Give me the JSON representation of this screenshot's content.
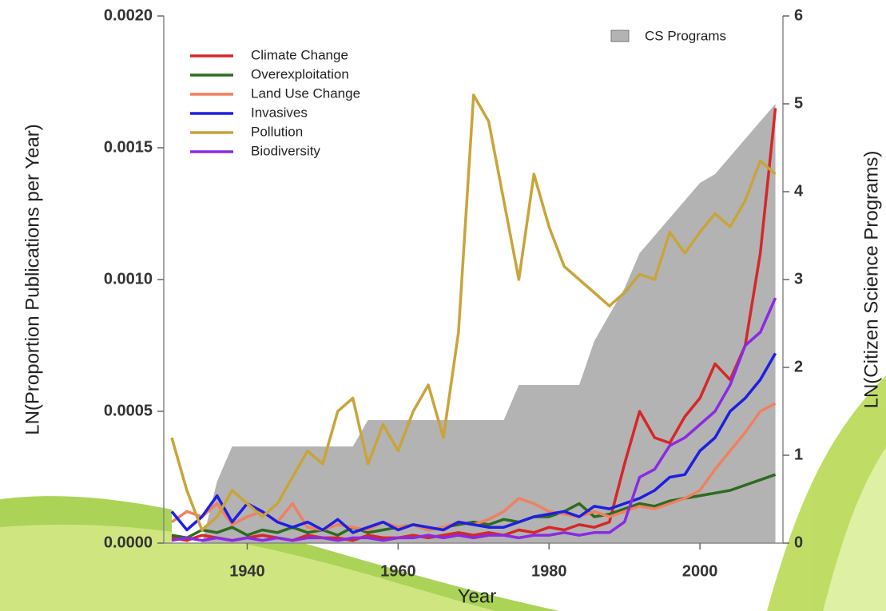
{
  "chart_data": {
    "type": "line",
    "xlabel": "Year",
    "ylabel": "LN(Proportion Publications per Year)",
    "y2label": "LN(Citizen Science Programs)",
    "x": [
      1930,
      1932,
      1934,
      1936,
      1938,
      1940,
      1942,
      1944,
      1946,
      1948,
      1950,
      1952,
      1954,
      1956,
      1958,
      1960,
      1962,
      1964,
      1966,
      1968,
      1970,
      1972,
      1974,
      1976,
      1978,
      1980,
      1982,
      1984,
      1986,
      1988,
      1990,
      1992,
      1994,
      1996,
      1998,
      2000,
      2002,
      2004,
      2006,
      2008,
      2010
    ],
    "xlim": [
      1930,
      2011
    ],
    "xticks": [
      1940,
      1960,
      1980,
      2000
    ],
    "ylim": [
      0,
      0.002
    ],
    "yticks": [
      {
        "value": 0,
        "label": "0.0000"
      },
      {
        "value": 0.0005,
        "label": "0.0005"
      },
      {
        "value": 0.001,
        "label": "0.0010"
      },
      {
        "value": 0.0015,
        "label": "0.0015"
      },
      {
        "value": 0.002,
        "label": "0.0020"
      }
    ],
    "y2lim": [
      0,
      6
    ],
    "y2ticks": [
      0,
      1,
      2,
      3,
      4,
      5,
      6
    ],
    "legend": "upper left",
    "series": [
      {
        "name": "CS Programs",
        "type": "area",
        "axis": "y2",
        "color": "#b3b3b3",
        "values": [
          0,
          0,
          0,
          0.7,
          1.1,
          1.1,
          1.1,
          1.1,
          1.1,
          1.1,
          1.1,
          1.1,
          1.1,
          1.4,
          1.4,
          1.4,
          1.4,
          1.4,
          1.4,
          1.4,
          1.4,
          1.4,
          1.4,
          1.8,
          1.8,
          1.8,
          1.8,
          1.8,
          2.3,
          2.6,
          2.9,
          3.3,
          3.5,
          3.7,
          3.9,
          4.1,
          4.2,
          4.4,
          4.6,
          4.8,
          5.0
        ]
      },
      {
        "name": "Climate Change",
        "color": "#d62728",
        "values": [
          2e-05,
          1e-05,
          3e-05,
          2e-05,
          1e-05,
          2e-05,
          3e-05,
          2e-05,
          1e-05,
          3e-05,
          2e-05,
          2e-05,
          1e-05,
          3e-05,
          2e-05,
          2e-05,
          3e-05,
          2e-05,
          3e-05,
          4e-05,
          3e-05,
          4e-05,
          3e-05,
          5e-05,
          4e-05,
          6e-05,
          5e-05,
          7e-05,
          6e-05,
          8e-05,
          0.0003,
          0.0005,
          0.0004,
          0.00038,
          0.00048,
          0.00055,
          0.00068,
          0.00062,
          0.00075,
          0.0011,
          0.00165
        ]
      },
      {
        "name": "Overexploitation",
        "color": "#2e6b1f",
        "values": [
          3e-05,
          2e-05,
          5e-05,
          4e-05,
          6e-05,
          3e-05,
          5e-05,
          4e-05,
          6e-05,
          4e-05,
          5e-05,
          3e-05,
          6e-05,
          4e-05,
          5e-05,
          6e-05,
          7e-05,
          5e-05,
          6e-05,
          7e-05,
          8e-05,
          7e-05,
          9e-05,
          8e-05,
          0.0001,
          0.0001,
          0.00012,
          0.00015,
          0.0001,
          0.00011,
          0.00013,
          0.00015,
          0.00014,
          0.00016,
          0.00017,
          0.00018,
          0.00019,
          0.0002,
          0.00022,
          0.00024,
          0.00026
        ]
      },
      {
        "name": "Land Use Change",
        "color": "#f08060",
        "values": [
          8e-05,
          0.00012,
          0.0001,
          0.00015,
          7e-05,
          0.0001,
          0.00012,
          8e-05,
          0.00015,
          6e-05,
          5e-05,
          7e-05,
          6e-05,
          5e-05,
          8e-05,
          6e-05,
          7e-05,
          5e-05,
          6e-05,
          8e-05,
          7e-05,
          9e-05,
          0.00012,
          0.00017,
          0.00015,
          0.00012,
          0.00011,
          0.0001,
          0.00012,
          0.0001,
          0.00012,
          0.00014,
          0.00013,
          0.00015,
          0.00017,
          0.0002,
          0.00028,
          0.00035,
          0.00042,
          0.0005,
          0.00053
        ]
      },
      {
        "name": "Invasives",
        "color": "#1f1fe0",
        "values": [
          0.00012,
          5e-05,
          0.0001,
          0.00018,
          8e-05,
          0.00015,
          0.00012,
          8e-05,
          6e-05,
          8e-05,
          5e-05,
          9e-05,
          4e-05,
          6e-05,
          8e-05,
          5e-05,
          7e-05,
          6e-05,
          5e-05,
          8e-05,
          7e-05,
          6e-05,
          6e-05,
          8e-05,
          0.0001,
          0.00011,
          0.00012,
          0.0001,
          0.00014,
          0.00013,
          0.00015,
          0.00017,
          0.0002,
          0.00025,
          0.00026,
          0.00035,
          0.0004,
          0.0005,
          0.00055,
          0.00062,
          0.00072
        ]
      },
      {
        "name": "Pollution",
        "color": "#c9a43a",
        "values": [
          0.0004,
          0.0002,
          5e-05,
          0.0001,
          0.0002,
          0.00015,
          0.0001,
          0.00015,
          0.00025,
          0.00035,
          0.0003,
          0.0005,
          0.00055,
          0.0003,
          0.00045,
          0.00035,
          0.0005,
          0.0006,
          0.0004,
          0.0008,
          0.0017,
          0.0016,
          0.0013,
          0.001,
          0.0014,
          0.0012,
          0.00105,
          0.001,
          0.00095,
          0.0009,
          0.00095,
          0.00102,
          0.001,
          0.00118,
          0.0011,
          0.00118,
          0.00125,
          0.0012,
          0.0013,
          0.00145,
          0.0014
        ]
      },
      {
        "name": "Biodiversity",
        "color": "#8a2be2",
        "values": [
          1e-05,
          2e-05,
          1e-05,
          2e-05,
          1e-05,
          2e-05,
          1e-05,
          2e-05,
          1e-05,
          2e-05,
          2e-05,
          1e-05,
          2e-05,
          2e-05,
          1e-05,
          2e-05,
          2e-05,
          3e-05,
          2e-05,
          3e-05,
          2e-05,
          3e-05,
          3e-05,
          2e-05,
          3e-05,
          3e-05,
          4e-05,
          3e-05,
          4e-05,
          4e-05,
          8e-05,
          0.00025,
          0.00028,
          0.00037,
          0.0004,
          0.00045,
          0.0005,
          0.0006,
          0.00075,
          0.0008,
          0.00093
        ]
      }
    ]
  }
}
